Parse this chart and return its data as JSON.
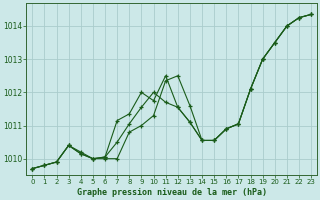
{
  "title": "Graphe pression niveau de la mer (hPa)",
  "bg_color": "#cce8e8",
  "grid_color": "#aacccc",
  "line_color": "#1a5c1a",
  "marker_color": "#1a5c1a",
  "xlim": [
    -0.5,
    23.5
  ],
  "ylim": [
    1009.5,
    1014.7
  ],
  "yticks": [
    1010,
    1011,
    1012,
    1013,
    1014
  ],
  "xticks": [
    0,
    1,
    2,
    3,
    4,
    5,
    6,
    7,
    8,
    9,
    10,
    11,
    12,
    13,
    14,
    15,
    16,
    17,
    18,
    19,
    20,
    21,
    22,
    23
  ],
  "series": [
    {
      "x": [
        0,
        1,
        2,
        3,
        4,
        5,
        6,
        7,
        8,
        9,
        10,
        11,
        12,
        13,
        14,
        15,
        16,
        17,
        18,
        19,
        20,
        21,
        22,
        23
      ],
      "y": [
        1009.7,
        1009.8,
        1009.9,
        1010.4,
        1010.2,
        1010.0,
        1010.0,
        1010.0,
        1010.8,
        1011.0,
        1011.3,
        1012.35,
        1012.5,
        1011.6,
        1010.55,
        1010.55,
        1010.9,
        1011.05,
        1012.1,
        1013.0,
        1013.5,
        1014.0,
        1014.25,
        1014.35
      ]
    },
    {
      "x": [
        0,
        1,
        2,
        3,
        4,
        5,
        6,
        7,
        8,
        9,
        10,
        11,
        12,
        13,
        14,
        15,
        16,
        17,
        18,
        19,
        20,
        21,
        22,
        23
      ],
      "y": [
        1009.7,
        1009.8,
        1009.9,
        1010.4,
        1010.15,
        1010.0,
        1010.05,
        1010.5,
        1011.05,
        1011.55,
        1012.0,
        1011.7,
        1011.55,
        1011.1,
        1010.55,
        1010.55,
        1010.9,
        1011.05,
        1012.1,
        1013.0,
        1013.5,
        1014.0,
        1014.25,
        1014.35
      ]
    },
    {
      "x": [
        0,
        1,
        2,
        3,
        4,
        5,
        6,
        7,
        8,
        9,
        10,
        11,
        12,
        13,
        14,
        15,
        16,
        17,
        18,
        19,
        20,
        21,
        22,
        23
      ],
      "y": [
        1009.7,
        1009.8,
        1009.9,
        1010.4,
        1010.15,
        1010.0,
        1010.05,
        1011.15,
        1011.35,
        1012.0,
        1011.75,
        1012.5,
        1011.55,
        1011.1,
        1010.55,
        1010.55,
        1010.9,
        1011.05,
        1012.1,
        1013.0,
        1013.5,
        1014.0,
        1014.25,
        1014.35
      ]
    }
  ],
  "ylabel_fontsize": 5.5,
  "xlabel_fontsize": 6.0,
  "tick_fontsize": 5.0
}
